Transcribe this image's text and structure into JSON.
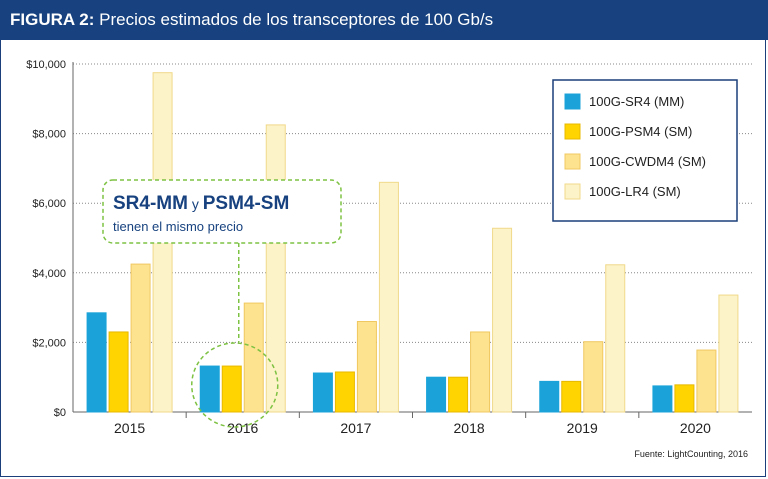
{
  "header": {
    "figure_label": "FIGURA 2:",
    "title": "Precios estimados de los transceptores de 100 Gb/s"
  },
  "colors": {
    "header_bg": "#17427f",
    "sr4": "#1ba3d9",
    "psm4": "#ffd400",
    "cwdm4": "#fde390",
    "lr4": "#fdf3c8",
    "legend_border": "#1b3f7a",
    "callout": "#7dc242"
  },
  "chart_data": {
    "type": "bar",
    "categories": [
      "2015",
      "2016",
      "2017",
      "2018",
      "2019",
      "2020"
    ],
    "series": [
      {
        "name": "100G-SR4 (MM)",
        "values": [
          2850,
          1320,
          1120,
          1000,
          880,
          750
        ]
      },
      {
        "name": "100G-PSM4 (SM)",
        "values": [
          2300,
          1320,
          1150,
          1000,
          880,
          780
        ]
      },
      {
        "name": "100G-CWDM4 (SM)",
        "values": [
          4250,
          3130,
          2600,
          2300,
          2020,
          1780
        ]
      },
      {
        "name": "100G-LR4 (SM)",
        "values": [
          9750,
          8250,
          6600,
          5280,
          4230,
          3360
        ]
      }
    ],
    "yticks": [
      "$0",
      "$2,000",
      "$4,000",
      "$6,000",
      "$8,000",
      "$10,000"
    ],
    "ylim": [
      0,
      10000
    ],
    "grid": "dotted horizontal",
    "legend": "top-right",
    "annotation": {
      "line1_a": "SR4-MM",
      "line1_y": "y",
      "line1_b": "PSM4-SM",
      "line2": "tienen el mismo precio",
      "target": "2016"
    }
  },
  "source": "Fuente: LightCounting, 2016"
}
